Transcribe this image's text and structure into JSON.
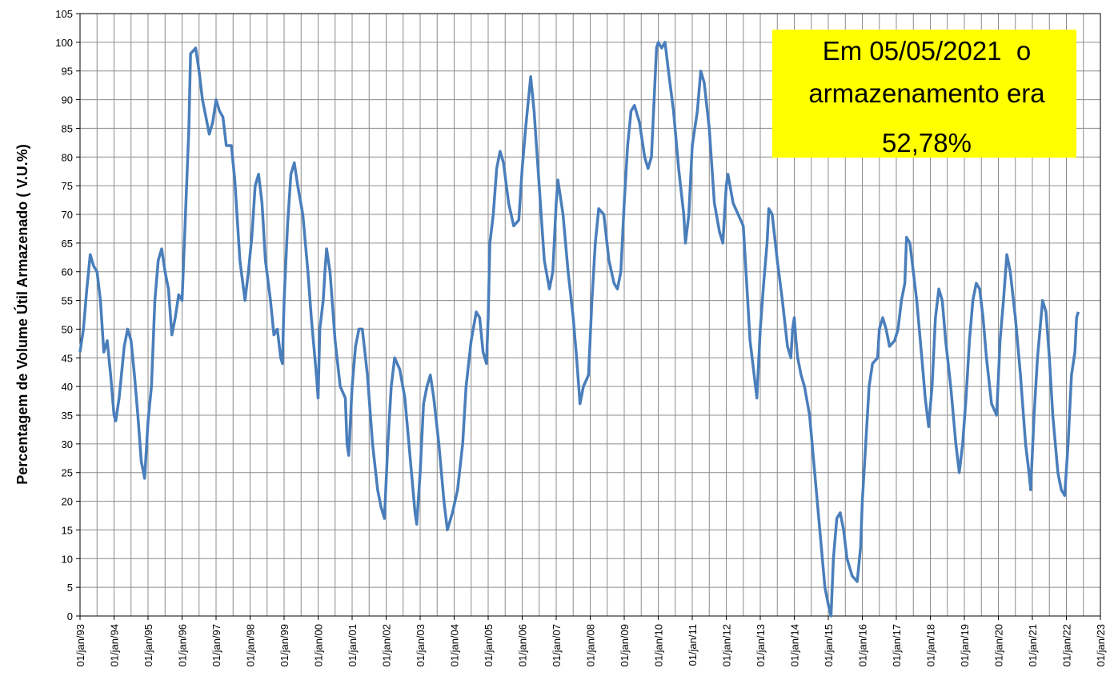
{
  "chart_data": {
    "type": "line",
    "y_label": "Percentagem de Volume Útil Armazenado ( V.U.%)",
    "annotation": [
      "Em 05/05/2021  o",
      "armazenamento era",
      "52,78%"
    ],
    "annotation_color": "#ffff00",
    "grid": true,
    "ylim": [
      0,
      105
    ],
    "yticks": [
      0,
      5,
      10,
      15,
      20,
      25,
      30,
      35,
      40,
      45,
      50,
      55,
      60,
      65,
      70,
      75,
      80,
      85,
      90,
      95,
      100,
      105
    ],
    "xlim": [
      1993,
      2023
    ],
    "xticks": [
      {
        "value": 1993,
        "label": "01/jan/93"
      },
      {
        "value": 1994,
        "label": "01/jan/94"
      },
      {
        "value": 1995,
        "label": "01/jan/95"
      },
      {
        "value": 1996,
        "label": "01/jan/96"
      },
      {
        "value": 1997,
        "label": "01/jan/97"
      },
      {
        "value": 1998,
        "label": "01/jan/98"
      },
      {
        "value": 1999,
        "label": "01/jan/99"
      },
      {
        "value": 2000,
        "label": "01/jan/00"
      },
      {
        "value": 2001,
        "label": "01/jan/01"
      },
      {
        "value": 2002,
        "label": "01/jan/02"
      },
      {
        "value": 2003,
        "label": "01/jan/03"
      },
      {
        "value": 2004,
        "label": "01/jan/04"
      },
      {
        "value": 2005,
        "label": "01/jan/05"
      },
      {
        "value": 2006,
        "label": "01/jan/06"
      },
      {
        "value": 2007,
        "label": "01/jan/07"
      },
      {
        "value": 2008,
        "label": "01/jan/08"
      },
      {
        "value": 2009,
        "label": "01/jan/09"
      },
      {
        "value": 2010,
        "label": "01/jan/10"
      },
      {
        "value": 2011,
        "label": "01/jan/11"
      },
      {
        "value": 2012,
        "label": "01/jan/12"
      },
      {
        "value": 2013,
        "label": "01/jan/13"
      },
      {
        "value": 2014,
        "label": "01/jan/14"
      },
      {
        "value": 2015,
        "label": "01/jan/15"
      },
      {
        "value": 2016,
        "label": "01/jan/16"
      },
      {
        "value": 2017,
        "label": "01/jan/17"
      },
      {
        "value": 2018,
        "label": "01/jan/18"
      },
      {
        "value": 2019,
        "label": "01/jan/19"
      },
      {
        "value": 2020,
        "label": "01/jan/20"
      },
      {
        "value": 2021,
        "label": "01/jan/21"
      },
      {
        "value": 2022,
        "label": "01/jan/22"
      },
      {
        "value": 2023,
        "label": "01/jan/23"
      }
    ],
    "xminor": [
      1993.5,
      1994.5,
      1995.5,
      1996.5,
      1997.5,
      1998.5,
      1999.5,
      2000.5,
      2001.5,
      2002.5,
      2003.5,
      2004.5,
      2005.5,
      2006.5,
      2007.5,
      2008.5,
      2009.5,
      2010.5,
      2011.5,
      2012.5,
      2013.5,
      2014.5,
      2015.5,
      2016.5,
      2017.5,
      2018.5,
      2019.5,
      2020.5,
      2021.5,
      2022.5
    ],
    "series": [
      {
        "color": "#4a7ebb",
        "x": [
          1993.0,
          1993.1,
          1993.2,
          1993.3,
          1993.4,
          1993.5,
          1993.6,
          1993.7,
          1993.8,
          1993.9,
          1994.0,
          1994.05,
          1994.15,
          1994.3,
          1994.4,
          1994.5,
          1994.6,
          1994.7,
          1994.8,
          1994.9,
          1995.0,
          1995.1,
          1995.2,
          1995.3,
          1995.4,
          1995.5,
          1995.6,
          1995.7,
          1995.8,
          1995.9,
          1996.0,
          1996.1,
          1996.2,
          1996.25,
          1996.4,
          1996.5,
          1996.6,
          1996.7,
          1996.8,
          1996.9,
          1997.0,
          1997.1,
          1997.2,
          1997.3,
          1997.45,
          1997.55,
          1997.7,
          1997.85,
          1997.95,
          1998.05,
          1998.15,
          1998.25,
          1998.35,
          1998.45,
          1998.6,
          1998.7,
          1998.8,
          1998.9,
          1998.95,
          1999.0,
          1999.1,
          1999.2,
          1999.3,
          1999.4,
          1999.55,
          1999.7,
          1999.8,
          1999.95,
          2000.0,
          2000.05,
          2000.15,
          2000.2,
          2000.25,
          2000.35,
          2000.5,
          2000.65,
          2000.8,
          2000.85,
          2000.9,
          2001.0,
          2001.1,
          2001.2,
          2001.3,
          2001.45,
          2001.6,
          2001.75,
          2001.85,
          2001.95,
          2002.05,
          2002.15,
          2002.25,
          2002.4,
          2002.55,
          2002.7,
          2002.85,
          2002.9,
          2003.0,
          2003.1,
          2003.2,
          2003.3,
          2003.4,
          2003.55,
          2003.7,
          2003.8,
          2003.95,
          2004.1,
          2004.25,
          2004.35,
          2004.5,
          2004.65,
          2004.75,
          2004.85,
          2004.95,
          2005.0,
          2005.05,
          2005.15,
          2005.25,
          2005.35,
          2005.45,
          2005.6,
          2005.75,
          2005.9,
          2006.0,
          2006.1,
          2006.2,
          2006.25,
          2006.35,
          2006.5,
          2006.65,
          2006.8,
          2006.9,
          2007.0,
          2007.05,
          2007.2,
          2007.35,
          2007.5,
          2007.6,
          2007.7,
          2007.8,
          2007.95,
          2008.05,
          2008.15,
          2008.25,
          2008.4,
          2008.55,
          2008.7,
          2008.8,
          2008.9,
          2009.0,
          2009.1,
          2009.2,
          2009.3,
          2009.45,
          2009.6,
          2009.7,
          2009.8,
          2009.95,
          2010.0,
          2010.1,
          2010.2,
          2010.3,
          2010.45,
          2010.6,
          2010.75,
          2010.8,
          2010.9,
          2011.0,
          2011.15,
          2011.25,
          2011.35,
          2011.5,
          2011.65,
          2011.8,
          2011.9,
          2012.0,
          2012.05,
          2012.2,
          2012.35,
          2012.5,
          2012.6,
          2012.7,
          2012.8,
          2012.9,
          2013.0,
          2013.1,
          2013.2,
          2013.25,
          2013.35,
          2013.5,
          2013.65,
          2013.8,
          2013.9,
          2013.95,
          2014.0,
          2014.05,
          2014.1,
          2014.2,
          2014.3,
          2014.45,
          2014.6,
          2014.75,
          2014.9,
          2015.0,
          2015.08,
          2015.15,
          2015.25,
          2015.35,
          2015.45,
          2015.55,
          2015.7,
          2015.85,
          2015.95,
          2016.0,
          2016.1,
          2016.2,
          2016.3,
          2016.45,
          2016.5,
          2016.6,
          2016.7,
          2016.8,
          2016.95,
          2017.05,
          2017.15,
          2017.25,
          2017.3,
          2017.4,
          2017.5,
          2017.6,
          2017.75,
          2017.85,
          2017.95,
          2018.05,
          2018.15,
          2018.25,
          2018.35,
          2018.45,
          2018.6,
          2018.75,
          2018.85,
          2018.95,
          2019.05,
          2019.15,
          2019.25,
          2019.35,
          2019.45,
          2019.55,
          2019.65,
          2019.8,
          2019.95,
          2020.05,
          2020.15,
          2020.25,
          2020.35,
          2020.5,
          2020.65,
          2020.8,
          2020.9,
          2020.95,
          2021.05,
          2021.15,
          2021.3,
          2021.4,
          2021.5,
          2021.6,
          2021.75,
          2021.85,
          2021.95,
          2022.05,
          2022.15,
          2022.25,
          2022.3,
          2022.35
        ],
        "values": [
          46,
          50,
          57,
          63,
          61,
          60,
          55,
          46,
          48,
          42,
          35,
          34,
          38,
          47,
          50,
          48,
          42,
          35,
          27,
          24,
          34,
          40,
          55,
          62,
          64,
          60,
          57,
          49,
          52,
          56,
          55,
          70,
          85,
          98,
          99,
          95,
          90,
          87,
          84,
          86,
          90,
          88,
          87,
          82,
          82,
          76,
          62,
          55,
          60,
          66,
          75,
          77,
          72,
          62,
          55,
          49,
          50,
          45,
          44,
          55,
          68,
          77,
          79,
          75,
          70,
          60,
          52,
          42,
          38,
          50,
          55,
          60,
          64,
          60,
          48,
          40,
          38,
          30,
          28,
          40,
          47,
          50,
          50,
          42,
          30,
          22,
          19,
          17,
          30,
          40,
          45,
          43,
          38,
          28,
          18,
          16,
          25,
          37,
          40,
          42,
          38,
          30,
          20,
          15,
          18,
          22,
          30,
          40,
          48,
          53,
          52,
          46,
          44,
          52,
          65,
          70,
          78,
          81,
          79,
          72,
          68,
          69,
          78,
          85,
          91,
          94,
          88,
          75,
          62,
          57,
          60,
          72,
          76,
          70,
          60,
          52,
          45,
          37,
          40,
          42,
          55,
          65,
          71,
          70,
          62,
          58,
          57,
          60,
          72,
          82,
          88,
          89,
          86,
          80,
          78,
          80,
          99,
          100,
          99,
          100,
          95,
          88,
          78,
          70,
          65,
          70,
          82,
          88,
          95,
          93,
          85,
          72,
          67,
          65,
          75,
          77,
          72,
          70,
          68,
          58,
          48,
          43,
          38,
          50,
          58,
          65,
          71,
          70,
          62,
          55,
          47,
          45,
          50,
          52,
          48,
          45,
          42,
          40,
          35,
          25,
          15,
          5,
          2,
          0,
          10,
          17,
          18,
          15,
          10,
          7,
          6,
          12,
          20,
          30,
          40,
          44,
          45,
          50,
          52,
          50,
          47,
          48,
          50,
          55,
          58,
          66,
          65,
          60,
          55,
          45,
          38,
          33,
          40,
          52,
          57,
          55,
          48,
          40,
          30,
          25,
          30,
          38,
          48,
          55,
          58,
          57,
          52,
          45,
          37,
          35,
          48,
          55,
          63,
          60,
          52,
          42,
          30,
          25,
          22,
          35,
          45,
          55,
          53,
          45,
          35,
          25,
          22,
          21,
          30,
          42,
          46,
          52,
          53
        ]
      }
    ]
  }
}
